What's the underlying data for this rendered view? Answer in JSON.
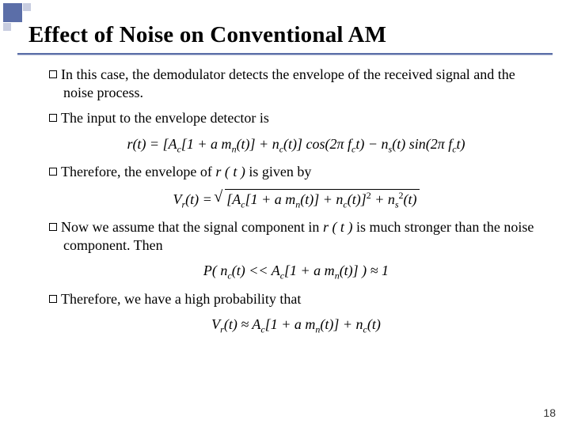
{
  "decoration": {
    "main_color": "#5b6ea8",
    "light_color": "#c8cde0"
  },
  "title": "Effect of Noise on Conventional AM",
  "bullets": {
    "b1": "In this case, the demodulator detects the envelope of the received signal and the noise process.",
    "b2": "The input to the envelope detector is",
    "b3_a": "Therefore, the envelope of ",
    "b3_b": "r ( t )",
    "b3_c": " is given by",
    "b4_a": "Now we assume that the signal component in ",
    "b4_b": "r ( t )",
    "b4_c": " is much stronger than the noise component. Then",
    "b5": "Therefore, we have a high probability that"
  },
  "equations": {
    "eq1_a": "r(t) = [A",
    "eq1_b": "[1 + a m",
    "eq1_c": "(t)] + n",
    "eq1_d": "(t)] cos(2π f",
    "eq1_e": "t) − n",
    "eq1_f": "(t) sin(2π f",
    "eq1_g": "t)",
    "eq2_a": "V",
    "eq2_b": "(t) = ",
    "eq2_c": "[A",
    "eq2_d": "[1 + a m",
    "eq2_e": "(t)] + n",
    "eq2_f": "(t)]",
    "eq2_g": " + n",
    "eq2_h": "(t)",
    "eq3_a": "P( n",
    "eq3_b": "(t) << A",
    "eq3_c": "[1 + a m",
    "eq3_d": "(t)] ) ≈ 1",
    "eq4_a": "V",
    "eq4_b": "(t) ≈ A",
    "eq4_c": "[1 + a m",
    "eq4_d": "(t)] + n",
    "eq4_e": "(t)"
  },
  "subscripts": {
    "c": "c",
    "n": "n",
    "s": "s",
    "r": "r",
    "two": "2"
  },
  "page_number": "18"
}
